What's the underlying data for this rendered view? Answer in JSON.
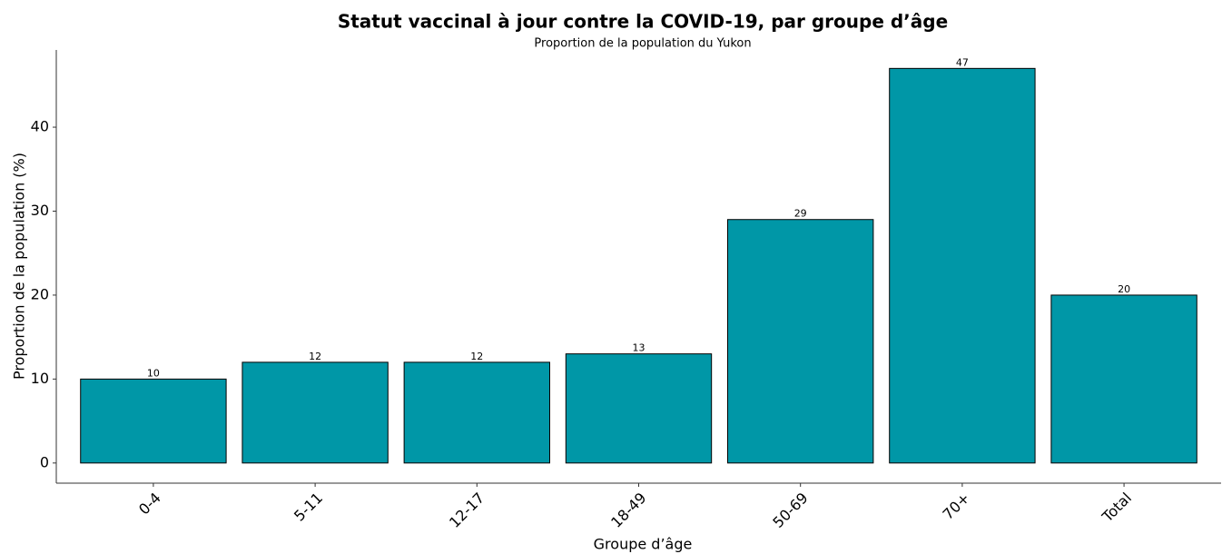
{
  "chart_data": {
    "type": "bar",
    "title": "Statut vaccinal à jour contre la COVID-19, par groupe d’âge",
    "subtitle": "Proportion de la population du Yukon",
    "x_label": "Groupe d’âge",
    "y_label": "Proportion de la population (%)",
    "categories": [
      "0-4",
      "5-11",
      "12-17",
      "18-49",
      "50-69",
      "70+",
      "Total"
    ],
    "values": [
      10,
      12,
      12,
      13,
      29,
      47,
      20
    ],
    "color": "#0097a7",
    "ylim": [
      -2.4,
      49.2
    ],
    "yticks": [
      0,
      10,
      20,
      30,
      40
    ],
    "grid": false
  }
}
